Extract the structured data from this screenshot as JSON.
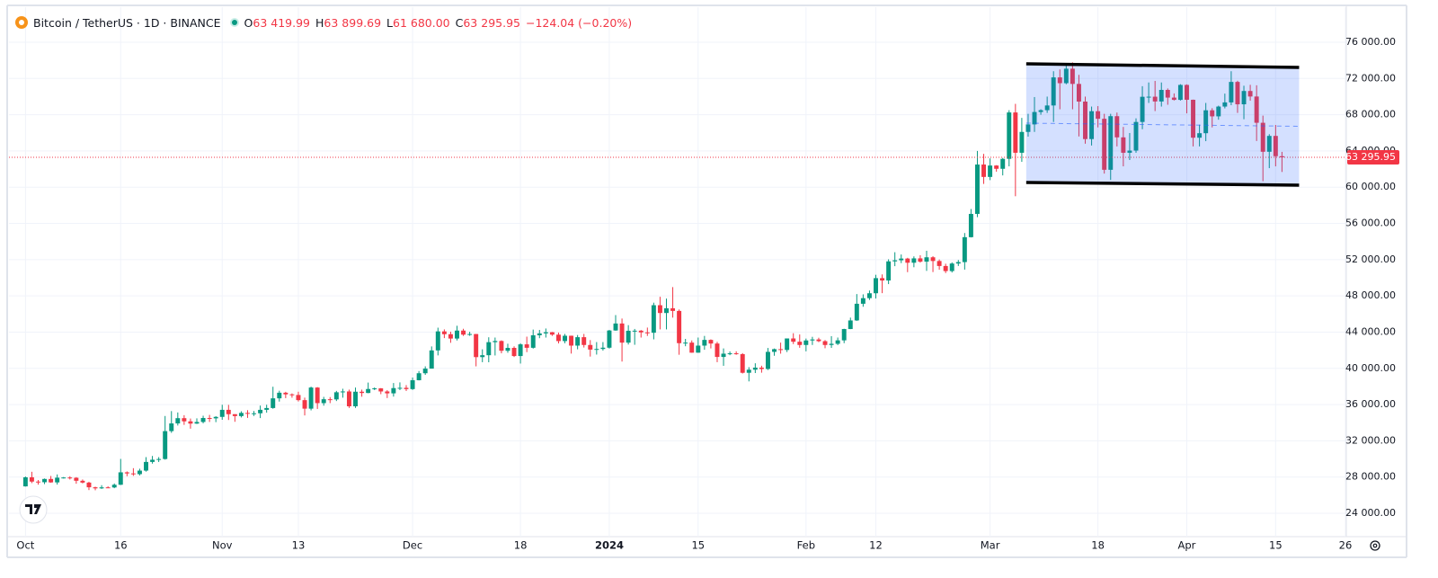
{
  "chart_data": {
    "type": "candlestick",
    "title": "Bitcoin / TetherUS · 1D · BINANCE",
    "ohlc_header": [
      {
        "key": "O",
        "value": 63419.99,
        "label": "63 419.99"
      },
      {
        "key": "H",
        "value": 63899.69,
        "label": "63 899.69"
      },
      {
        "key": "L",
        "value": 61680.0,
        "label": "61 680.00"
      },
      {
        "key": "C",
        "value": 63295.95,
        "label": "63 295.95"
      }
    ],
    "change": "−124.04 (−0.20%)",
    "up_color": "#089981",
    "down_color": "#f23645",
    "xlim": [
      -2.6,
      208.0
    ],
    "ylim": [
      21420,
      79870
    ],
    "grid": true,
    "xticks": [
      {
        "value": 0,
        "label": "Oct"
      },
      {
        "value": 15,
        "label": "16"
      },
      {
        "value": 31,
        "label": "Nov"
      },
      {
        "value": 43,
        "label": "13"
      },
      {
        "value": 61,
        "label": "Dec"
      },
      {
        "value": 78,
        "label": "18"
      },
      {
        "value": 92,
        "label": "2024"
      },
      {
        "value": 106,
        "label": "15"
      },
      {
        "value": 123,
        "label": "Feb"
      },
      {
        "value": 134,
        "label": "12"
      },
      {
        "value": 152,
        "label": "Mar"
      },
      {
        "value": 169,
        "label": "18"
      },
      {
        "value": 183,
        "label": "Apr"
      },
      {
        "value": 197,
        "label": "15"
      },
      {
        "value": 208,
        "label": "26"
      }
    ],
    "yticks": [
      {
        "value": 24000,
        "label": "24 000.00"
      },
      {
        "value": 28000,
        "label": "28 000.00"
      },
      {
        "value": 32000,
        "label": "32 000.00"
      },
      {
        "value": 36000,
        "label": "36 000.00"
      },
      {
        "value": 40000,
        "label": "40 000.00"
      },
      {
        "value": 44000,
        "label": "44 000.00"
      },
      {
        "value": 48000,
        "label": "48 000.00"
      },
      {
        "value": 52000,
        "label": "52 000.00"
      },
      {
        "value": 56000,
        "label": "56 000.00"
      },
      {
        "value": 60000,
        "label": "60 000.00"
      },
      {
        "value": 64000,
        "label": "64 000.00"
      },
      {
        "value": 68000,
        "label": "68 000.00"
      },
      {
        "value": 72000,
        "label": "72 000.00"
      },
      {
        "value": 76000,
        "label": "76 000.00"
      }
    ],
    "last_price": {
      "value": 63295.95,
      "label": "63 295.95"
    },
    "channel": {
      "x": [
        157.7,
        200.7
      ],
      "upper": [
        73620,
        73220
      ],
      "lower": [
        60520,
        60220
      ],
      "color": "#2962ff"
    },
    "open": [
      26970,
      27970,
      27500,
      27430,
      27790,
      27410,
      27930,
      27950,
      27920,
      27590,
      27390,
      26870,
      26750,
      26860,
      26850,
      27150,
      28520,
      28400,
      28320,
      28710,
      29670,
      29910,
      29990,
      33070,
      33920,
      34500,
      34150,
      33900,
      34080,
      34520,
      34480,
      34640,
      35420,
      34940,
      34730,
      35080,
      35020,
      35040,
      35420,
      35620,
      36690,
      37310,
      37130,
      37060,
      36490,
      35550,
      37880,
      36160,
      36590,
      36570,
      37360,
      37450,
      35810,
      37420,
      37280,
      37720,
      37790,
      37450,
      37240,
      37820,
      37850,
      37710,
      38690,
      39460,
      39970,
      41980,
      44080,
      43770,
      43290,
      44170,
      43720,
      43790,
      41240,
      41450,
      42890,
      43020,
      41940,
      42260,
      41360,
      42650,
      42270,
      43650,
      43860,
      43990,
      43720,
      43010,
      43600,
      42510,
      43440,
      42580,
      42070,
      42140,
      42280,
      44180,
      44950,
      42840,
      44150,
      44160,
      43970,
      43930,
      46970,
      46110,
      46630,
      46340,
      42780,
      42840,
      41730,
      42510,
      43140,
      42740,
      41260,
      41620,
      41660,
      41570,
      39510,
      39850,
      40080,
      39930,
      41820,
      42120,
      42030,
      43300,
      42940,
      42580,
      43080,
      43190,
      43000,
      42580,
      42710,
      43090,
      44340,
      45290,
      47130,
      47750,
      48290,
      49960,
      49700,
      51810,
      51930,
      52120,
      51660,
      52140,
      51780,
      52260,
      51850,
      51300,
      50740,
      51570,
      51730,
      54480,
      57050,
      62500,
      61130,
      62390,
      62030,
      63130,
      68250,
      63800,
      66100,
      66930,
      68300,
      68500,
      69020,
      72120,
      71480,
      73080,
      71400,
      69450,
      65310,
      68390,
      67550,
      61920,
      67840,
      65500,
      63800,
      64040,
      67200,
      69980,
      69990,
      69460,
      70740,
      69890,
      69640,
      71290,
      69650,
      65460,
      65960,
      68490,
      67820,
      68900,
      69360,
      71620,
      69150,
      70620,
      70010,
      67110,
      63910,
      65660,
      63419.99
    ],
    "high": [
      28060,
      28580,
      27670,
      27840,
      28120,
      28290,
      28000,
      28090,
      27990,
      27730,
      27480,
      26940,
      27100,
      26980,
      27290,
      30000,
      28620,
      28980,
      28920,
      30200,
      30330,
      30200,
      34740,
      35280,
      35130,
      34830,
      34460,
      34480,
      34770,
      34860,
      34720,
      35980,
      35970,
      34940,
      35260,
      35380,
      35290,
      35890,
      35980,
      37970,
      37530,
      37410,
      37230,
      37420,
      36770,
      37980,
      37930,
      36850,
      36830,
      37510,
      37750,
      37650,
      37880,
      37650,
      38430,
      37890,
      37820,
      37590,
      38380,
      38450,
      38150,
      38990,
      39700,
      40220,
      42420,
      44490,
      44300,
      44050,
      44700,
      44370,
      44040,
      43800,
      42100,
      43430,
      43400,
      43090,
      42720,
      42430,
      42770,
      43500,
      44280,
      44240,
      44400,
      44020,
      43950,
      43800,
      43610,
      43680,
      43800,
      43120,
      42900,
      42900,
      44240,
      45880,
      45500,
      44770,
      44350,
      44230,
      44500,
      47250,
      47900,
      47700,
      48970,
      46500,
      43250,
      43080,
      43400,
      43580,
      43200,
      42930,
      42200,
      41870,
      41880,
      41680,
      40130,
      40560,
      40290,
      42250,
      42190,
      42840,
      43300,
      43880,
      43740,
      43290,
      43480,
      43380,
      43120,
      43550,
      43400,
      44370,
      45600,
      48200,
      48170,
      48590,
      50330,
      50370,
      52040,
      52820,
      52570,
      52200,
      52360,
      52490,
      52980,
      52380,
      52020,
      51550,
      51700,
      51960,
      54940,
      57590,
      64000,
      63680,
      63180,
      62430,
      63230,
      68500,
      69200,
      67650,
      68100,
      69950,
      68600,
      70000,
      72800,
      73000,
      73650,
      73780,
      72400,
      70000,
      68900,
      68950,
      68100,
      68100,
      68240,
      66650,
      65980,
      67600,
      71150,
      71560,
      71730,
      71560,
      70900,
      70350,
      71370,
      71350,
      69670,
      66900,
      69300,
      68720,
      69000,
      70330,
      72800,
      71750,
      71200,
      71300,
      71250,
      67900,
      65850,
      66870,
      63899.69
    ],
    "low": [
      26950,
      27330,
      27160,
      27220,
      27370,
      27170,
      27840,
      27730,
      27260,
      27300,
      26560,
      26540,
      26690,
      26810,
      26770,
      27120,
      28090,
      28130,
      28180,
      28600,
      29480,
      29660,
      29920,
      32880,
      33690,
      33760,
      33340,
      33860,
      33930,
      34080,
      34060,
      34320,
      34300,
      34100,
      34580,
      34530,
      34740,
      34510,
      35110,
      35540,
      36330,
      36710,
      36760,
      36340,
      34800,
      35360,
      35520,
      35880,
      36160,
      36390,
      36760,
      35630,
      35630,
      36870,
      37250,
      37600,
      37150,
      36720,
      36880,
      37600,
      37500,
      37620,
      38670,
      39280,
      39970,
      41430,
      43340,
      42820,
      43080,
      43580,
      43590,
      40220,
      40680,
      40670,
      41420,
      41660,
      41720,
      41250,
      40530,
      41790,
      42180,
      43330,
      43400,
      43580,
      42750,
      42770,
      41630,
      42100,
      42300,
      41300,
      41520,
      41960,
      42180,
      44150,
      40750,
      42630,
      42600,
      43400,
      43580,
      43200,
      44300,
      44300,
      45600,
      41500,
      42440,
      41720,
      41720,
      42050,
      42200,
      40680,
      40280,
      41450,
      41500,
      39430,
      38560,
      39480,
      39520,
      39820,
      41390,
      41620,
      41800,
      42680,
      42270,
      41880,
      42580,
      42890,
      42220,
      42260,
      42570,
      42780,
      44330,
      45240,
      46800,
      47550,
      47710,
      48300,
      49300,
      51280,
      51620,
      50620,
      51160,
      51670,
      50760,
      50630,
      50890,
      50520,
      50580,
      51300,
      50900,
      54450,
      56690,
      60360,
      60780,
      61710,
      61300,
      62300,
      59000,
      62800,
      65580,
      66100,
      68000,
      68200,
      67200,
      68600,
      71360,
      68600,
      65600,
      64800,
      64600,
      66600,
      61500,
      60800,
      64500,
      62300,
      63000,
      63800,
      66400,
      69300,
      68400,
      68900,
      69100,
      69570,
      69560,
      68150,
      64500,
      64500,
      65080,
      66600,
      67450,
      68700,
      69050,
      68200,
      67500,
      69550,
      65100,
      60660,
      62100,
      62300,
      61680.0
    ],
    "close": [
      27970,
      27500,
      27430,
      27790,
      27410,
      27930,
      27950,
      27920,
      27590,
      27390,
      26870,
      26750,
      26860,
      26850,
      27150,
      28520,
      28400,
      28320,
      28710,
      29670,
      29910,
      29990,
      33070,
      33920,
      34500,
      34150,
      33900,
      34080,
      34520,
      34480,
      34640,
      35420,
      34940,
      34730,
      35080,
      35020,
      35040,
      35420,
      35620,
      36690,
      37310,
      37130,
      37060,
      36490,
      35550,
      37880,
      36160,
      36590,
      36570,
      37360,
      37450,
      35810,
      37420,
      37280,
      37720,
      37790,
      37450,
      37240,
      37820,
      37850,
      37710,
      38690,
      39460,
      39970,
      41980,
      44080,
      43770,
      43290,
      44170,
      43720,
      43790,
      41240,
      41450,
      42890,
      43020,
      41940,
      42260,
      41360,
      42650,
      42270,
      43650,
      43860,
      43990,
      43720,
      43010,
      43600,
      42510,
      43440,
      42580,
      42070,
      42140,
      42280,
      44180,
      44950,
      42840,
      44150,
      44160,
      43970,
      43930,
      46970,
      46110,
      46630,
      46340,
      42780,
      42840,
      41730,
      42510,
      43140,
      42740,
      41260,
      41620,
      41660,
      41570,
      39510,
      39850,
      40080,
      39930,
      41820,
      42120,
      42030,
      43300,
      42940,
      42580,
      43080,
      43190,
      43000,
      42580,
      42710,
      43090,
      44340,
      45290,
      47130,
      47750,
      48290,
      49960,
      49700,
      51810,
      51930,
      52120,
      51660,
      52140,
      51780,
      52260,
      51850,
      51300,
      50740,
      51570,
      51730,
      54480,
      57050,
      62500,
      61130,
      62390,
      62030,
      63130,
      68250,
      63800,
      66100,
      66930,
      68300,
      68500,
      69020,
      72120,
      71480,
      73080,
      71400,
      69450,
      65310,
      68390,
      67550,
      61920,
      67840,
      65500,
      63800,
      64040,
      67200,
      69980,
      69990,
      69460,
      70740,
      69890,
      69640,
      71290,
      69650,
      65460,
      65960,
      68490,
      67820,
      68900,
      69360,
      71620,
      69150,
      70620,
      70010,
      67110,
      63910,
      65660,
      63420,
      63295.95
    ]
  }
}
